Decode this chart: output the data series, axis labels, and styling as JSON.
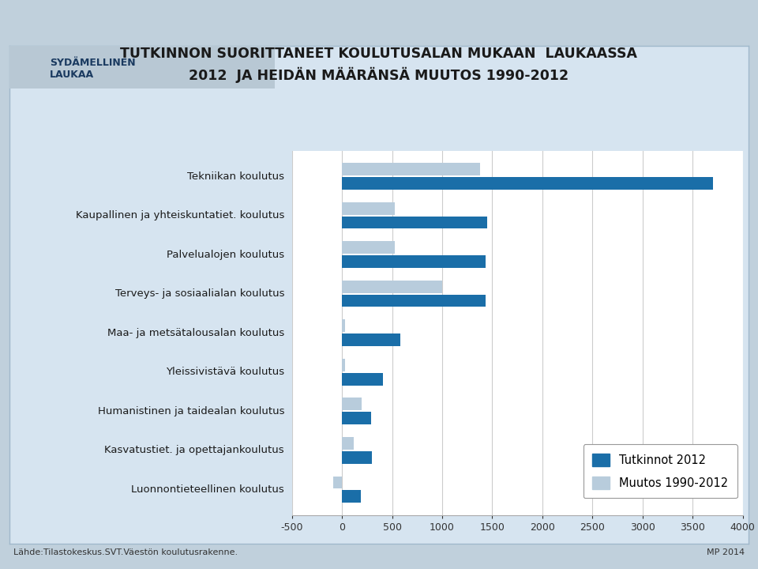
{
  "categories": [
    "Tekniikan koulutus",
    "Kaupallinen ja yhteiskuntatiet. koulutus",
    "Palvelualojen koulutus",
    "Terveys- ja sosiaalialan koulutus",
    "Maa- ja metsätalousalan koulutus",
    "Yleissivistävä koulutus",
    "Humanistinen ja taidealan koulutus",
    "Kasvatustiet. ja opettajankoulutus",
    "Luonnontieteellinen koulutus"
  ],
  "tutkinnot_2012": [
    3700,
    1450,
    1430,
    1430,
    580,
    410,
    290,
    295,
    190
  ],
  "muutos_1990_2012": [
    1380,
    530,
    530,
    1000,
    30,
    30,
    200,
    120,
    -90
  ],
  "color_tutkinnot": "#1A6EA8",
  "color_muutos": "#B8CCDC",
  "title_line1": "TUTKINNON SUORITTANEET KOULUTUSALAN MUKAAN  LAUKAASSA",
  "title_line2": "2012  JA HEIDÄN MÄÄRÄNSÄ MUUTOS 1990-2012",
  "legend_tutkinnot": "Tutkinnot 2012",
  "legend_muutos": "Muutos 1990-2012",
  "xlim": [
    -500,
    4000
  ],
  "xticks": [
    -500,
    0,
    500,
    1000,
    1500,
    2000,
    2500,
    3000,
    3500,
    4000
  ],
  "xticklabels": [
    "-500",
    "0",
    "500",
    "1000",
    "1500",
    "2000",
    "2500",
    "3000",
    "3500",
    "4000"
  ],
  "footer_left": "Lähde:Tilastokeskus.SVT.Väestön koulutusrakenne.",
  "footer_right": "MP 2014",
  "outer_bg": "#C0D0DC",
  "inner_bg": "#D6E4F0",
  "chart_bg": "#FFFFFF",
  "header_bg": "#B8C8D4"
}
